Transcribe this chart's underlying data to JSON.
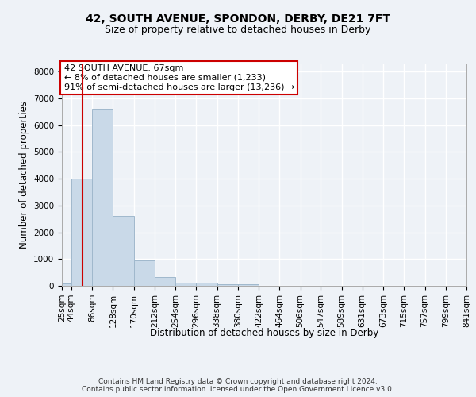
{
  "title1": "42, SOUTH AVENUE, SPONDON, DERBY, DE21 7FT",
  "title2": "Size of property relative to detached houses in Derby",
  "xlabel": "Distribution of detached houses by size in Derby",
  "ylabel": "Number of detached properties",
  "annotation_title": "42 SOUTH AVENUE: 67sqm",
  "annotation_line1": "← 8% of detached houses are smaller (1,233)",
  "annotation_line2": "91% of semi-detached houses are larger (13,236) →",
  "footnote1": "Contains HM Land Registry data © Crown copyright and database right 2024.",
  "footnote2": "Contains public sector information licensed under the Open Government Licence v3.0.",
  "bar_color": "#c9d9e8",
  "bar_edge_color": "#a0b8cc",
  "vline_value": 67,
  "vline_color": "#cc0000",
  "annotation_box_edge_color": "#cc0000",
  "bin_edges": [
    25,
    44,
    86,
    128,
    170,
    212,
    254,
    296,
    338,
    380,
    422,
    464,
    506,
    547,
    589,
    631,
    673,
    715,
    757,
    799,
    841
  ],
  "bar_heights": [
    75,
    4000,
    6600,
    2600,
    950,
    320,
    130,
    110,
    70,
    60,
    0,
    0,
    0,
    0,
    0,
    0,
    0,
    0,
    0,
    0
  ],
  "tick_labels": [
    "25sqm",
    "44sqm",
    "86sqm",
    "128sqm",
    "170sqm",
    "212sqm",
    "254sqm",
    "296sqm",
    "338sqm",
    "380sqm",
    "422sqm",
    "464sqm",
    "506sqm",
    "547sqm",
    "589sqm",
    "631sqm",
    "673sqm",
    "715sqm",
    "757sqm",
    "799sqm",
    "841sqm"
  ],
  "ylim": [
    0,
    8300
  ],
  "yticks": [
    0,
    1000,
    2000,
    3000,
    4000,
    5000,
    6000,
    7000,
    8000
  ],
  "background_color": "#eef2f7",
  "plot_bg_color": "#eef2f7",
  "grid_color": "#ffffff",
  "title1_fontsize": 10,
  "title2_fontsize": 9,
  "axis_label_fontsize": 8.5,
  "tick_fontsize": 7.5,
  "annotation_fontsize": 8,
  "footnote_fontsize": 6.5
}
